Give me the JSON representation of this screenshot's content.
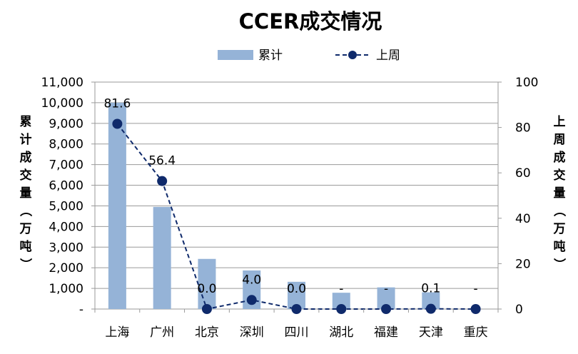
{
  "chart_data": {
    "type": "bar",
    "title": "CCER成交情况",
    "categories": [
      "上海",
      "广州",
      "北京",
      "深圳",
      "四川",
      "湖北",
      "福建",
      "天津",
      "重庆"
    ],
    "series": [
      {
        "name": "累计",
        "type": "bar",
        "axis": "left",
        "color": "#95B3D7",
        "values": [
          10000,
          4950,
          2430,
          1870,
          1320,
          790,
          1050,
          810,
          0
        ]
      },
      {
        "name": "上周",
        "type": "line",
        "axis": "right",
        "color": "#0F2A6B",
        "line_style": "dashed",
        "marker": "circle",
        "values": [
          81.6,
          56.4,
          0.0,
          4.0,
          0.0,
          0,
          0,
          0.1,
          0
        ],
        "labels": [
          "81.6",
          "56.4",
          "0.0",
          "4.0",
          "0.0",
          "-",
          "-",
          "0.1",
          "-"
        ]
      }
    ],
    "ylabel": "累计成交量（万吨）",
    "y2label": "上周成交量（万吨）",
    "ylim": [
      0,
      11000
    ],
    "y2lim": [
      0,
      100
    ],
    "yticks": [
      "-",
      "1,000",
      "2,000",
      "3,000",
      "4,000",
      "5,000",
      "6,000",
      "7,000",
      "8,000",
      "9,000",
      "10,000",
      "11,000"
    ],
    "y2ticks": [
      "0",
      "20",
      "40",
      "60",
      "80",
      "100"
    ],
    "grid": true,
    "legend": "top-center"
  }
}
